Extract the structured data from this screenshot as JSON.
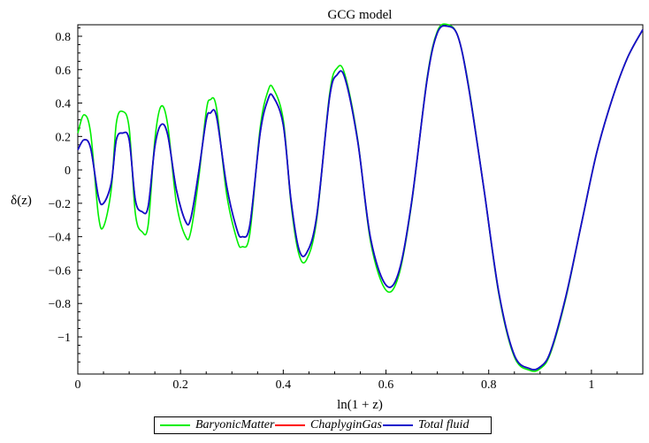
{
  "chart_data": {
    "type": "line",
    "title": "GCG model",
    "xlabel": "ln(1 + z)",
    "ylabel": "δ(z)",
    "xlim": [
      0,
      1.1
    ],
    "ylim": [
      -1.2,
      0.9
    ],
    "xticks": [
      0,
      0.2,
      0.4,
      0.6,
      0.8,
      1
    ],
    "xtick_labels": [
      "0",
      "0.2",
      "0.4",
      "0.6",
      "0.8",
      "1"
    ],
    "yticks": [
      0.8,
      0.6,
      0.4,
      0.2,
      0,
      -0.2,
      -0.4,
      -0.6,
      -0.8,
      -1
    ],
    "ytick_labels": [
      "0.8",
      "0.6",
      "0.4",
      "0.2",
      "0",
      "−0.2",
      "−0.4",
      "−0.6",
      "−0.8",
      "−1"
    ],
    "grid": false,
    "legend_position": "bottom",
    "series": [
      {
        "name": "BaryonicMatter",
        "color": "#00ee00",
        "x": [
          0,
          0.012,
          0.025,
          0.04,
          0.05,
          0.065,
          0.075,
          0.087,
          0.1,
          0.112,
          0.125,
          0.137,
          0.15,
          0.162,
          0.175,
          0.192,
          0.21,
          0.22,
          0.235,
          0.25,
          0.258,
          0.27,
          0.29,
          0.31,
          0.32,
          0.335,
          0.355,
          0.37,
          0.38,
          0.4,
          0.415,
          0.43,
          0.445,
          0.465,
          0.49,
          0.505,
          0.52,
          0.545,
          0.57,
          0.6,
          0.625,
          0.65,
          0.68,
          0.7,
          0.72,
          0.74,
          0.76,
          0.79,
          0.82,
          0.85,
          0.88,
          0.9,
          0.92,
          0.95,
          0.98,
          1.01,
          1.04,
          1.07,
          1.1
        ],
        "y": [
          0.22,
          0.33,
          0.22,
          -0.27,
          -0.34,
          -0.12,
          0.28,
          0.35,
          0.25,
          -0.26,
          -0.37,
          -0.33,
          0.18,
          0.38,
          0.27,
          -0.2,
          -0.4,
          -0.37,
          -0.06,
          0.35,
          0.42,
          0.37,
          -0.15,
          -0.42,
          -0.46,
          -0.38,
          0.25,
          0.47,
          0.49,
          0.3,
          -0.2,
          -0.5,
          -0.54,
          -0.3,
          0.45,
          0.61,
          0.57,
          0.18,
          -0.43,
          -0.72,
          -0.63,
          -0.2,
          0.55,
          0.83,
          0.87,
          0.8,
          0.52,
          -0.1,
          -0.75,
          -1.12,
          -1.2,
          -1.19,
          -1.1,
          -0.77,
          -0.33,
          0.1,
          0.42,
          0.67,
          0.84
        ]
      },
      {
        "name": "ChaplyginGas",
        "color": "#ff0000",
        "x": [
          0,
          0.012,
          0.025,
          0.04,
          0.05,
          0.065,
          0.075,
          0.087,
          0.1,
          0.112,
          0.125,
          0.137,
          0.15,
          0.162,
          0.175,
          0.192,
          0.21,
          0.22,
          0.235,
          0.25,
          0.258,
          0.27,
          0.29,
          0.31,
          0.32,
          0.335,
          0.355,
          0.37,
          0.38,
          0.4,
          0.415,
          0.43,
          0.445,
          0.465,
          0.49,
          0.505,
          0.52,
          0.545,
          0.57,
          0.6,
          0.625,
          0.65,
          0.68,
          0.7,
          0.72,
          0.74,
          0.76,
          0.79,
          0.82,
          0.85,
          0.88,
          0.9,
          0.92,
          0.95,
          0.98,
          1.01,
          1.04,
          1.07,
          1.1
        ],
        "y": [
          0.12,
          0.18,
          0.13,
          -0.16,
          -0.2,
          -0.08,
          0.18,
          0.22,
          0.18,
          -0.18,
          -0.25,
          -0.22,
          0.14,
          0.27,
          0.21,
          -0.12,
          -0.31,
          -0.29,
          -0.02,
          0.3,
          0.34,
          0.32,
          -0.1,
          -0.36,
          -0.4,
          -0.33,
          0.22,
          0.42,
          0.44,
          0.27,
          -0.18,
          -0.47,
          -0.5,
          -0.28,
          0.43,
          0.57,
          0.55,
          0.17,
          -0.41,
          -0.69,
          -0.61,
          -0.19,
          0.54,
          0.82,
          0.86,
          0.8,
          0.51,
          -0.1,
          -0.74,
          -1.11,
          -1.19,
          -1.18,
          -1.09,
          -0.76,
          -0.33,
          0.1,
          0.42,
          0.67,
          0.84
        ]
      },
      {
        "name": "Total fluid",
        "color": "#1010cc",
        "x": [
          0,
          0.012,
          0.025,
          0.04,
          0.05,
          0.065,
          0.075,
          0.087,
          0.1,
          0.112,
          0.125,
          0.137,
          0.15,
          0.162,
          0.175,
          0.192,
          0.21,
          0.22,
          0.235,
          0.25,
          0.258,
          0.27,
          0.29,
          0.31,
          0.32,
          0.335,
          0.355,
          0.37,
          0.38,
          0.4,
          0.415,
          0.43,
          0.445,
          0.465,
          0.49,
          0.505,
          0.52,
          0.545,
          0.57,
          0.6,
          0.625,
          0.65,
          0.68,
          0.7,
          0.72,
          0.74,
          0.76,
          0.79,
          0.82,
          0.85,
          0.88,
          0.9,
          0.92,
          0.95,
          0.98,
          1.01,
          1.04,
          1.07,
          1.1
        ],
        "y": [
          0.12,
          0.18,
          0.13,
          -0.16,
          -0.2,
          -0.08,
          0.18,
          0.22,
          0.18,
          -0.18,
          -0.25,
          -0.22,
          0.14,
          0.27,
          0.21,
          -0.12,
          -0.31,
          -0.29,
          -0.02,
          0.3,
          0.34,
          0.32,
          -0.1,
          -0.36,
          -0.4,
          -0.33,
          0.22,
          0.42,
          0.44,
          0.27,
          -0.18,
          -0.47,
          -0.5,
          -0.28,
          0.43,
          0.57,
          0.55,
          0.17,
          -0.41,
          -0.69,
          -0.61,
          -0.19,
          0.54,
          0.82,
          0.86,
          0.8,
          0.51,
          -0.1,
          -0.74,
          -1.11,
          -1.19,
          -1.18,
          -1.09,
          -0.76,
          -0.33,
          0.1,
          0.42,
          0.67,
          0.84
        ]
      }
    ]
  }
}
